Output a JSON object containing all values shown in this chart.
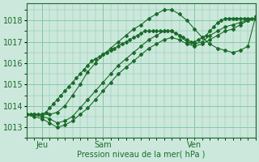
{
  "xlabel": "Pression niveau de la mer( hPa )",
  "bg_color": "#cce8dc",
  "grid_color": "#88c8a8",
  "line_color": "#1a6b2a",
  "xlim": [
    0,
    60
  ],
  "ylim": [
    1012.5,
    1018.8
  ],
  "yticks": [
    1013,
    1014,
    1015,
    1016,
    1017,
    1018
  ],
  "xtick_positions": [
    4,
    20,
    44
  ],
  "xtick_labels": [
    "Jeu",
    "Sam",
    "Ven"
  ],
  "vline_positions": [
    4,
    20,
    44
  ],
  "series": [
    {
      "x": [
        0,
        1,
        2,
        3,
        4,
        5,
        6,
        7,
        8,
        9,
        10,
        11,
        12,
        13,
        14,
        15,
        16,
        17,
        18,
        19,
        20,
        21,
        22,
        23,
        24,
        25,
        26,
        27,
        28,
        29,
        30,
        31,
        32,
        33,
        34,
        35,
        36,
        37,
        38,
        39,
        40,
        41,
        42,
        43,
        44,
        45,
        46,
        47,
        48,
        49,
        50,
        51,
        52,
        53,
        54,
        55,
        56,
        57,
        58,
        59,
        60
      ],
      "y": [
        1013.6,
        1013.6,
        1013.6,
        1013.6,
        1013.6,
        1013.7,
        1013.9,
        1014.1,
        1014.3,
        1014.5,
        1014.7,
        1014.9,
        1015.1,
        1015.3,
        1015.5,
        1015.7,
        1015.9,
        1016.1,
        1016.2,
        1016.3,
        1016.4,
        1016.5,
        1016.6,
        1016.7,
        1016.8,
        1016.9,
        1017.0,
        1017.1,
        1017.2,
        1017.3,
        1017.4,
        1017.5,
        1017.5,
        1017.5,
        1017.5,
        1017.5,
        1017.5,
        1017.5,
        1017.5,
        1017.4,
        1017.3,
        1017.2,
        1017.1,
        1017.0,
        1017.0,
        1017.1,
        1017.2,
        1017.3,
        1017.5,
        1017.7,
        1017.9,
        1018.0,
        1018.1,
        1018.1,
        1018.1,
        1018.1,
        1018.1,
        1018.1,
        1018.1,
        1018.1,
        1018.1
      ]
    },
    {
      "x": [
        0,
        2,
        4,
        6,
        8,
        10,
        12,
        14,
        16,
        18,
        20,
        22,
        24,
        26,
        28,
        30,
        32,
        34,
        36,
        38,
        40,
        42,
        44,
        46,
        48,
        50,
        52,
        54,
        56,
        58,
        60
      ],
      "y": [
        1013.6,
        1013.5,
        1013.4,
        1013.2,
        1013.0,
        1013.1,
        1013.3,
        1013.6,
        1013.9,
        1014.3,
        1014.7,
        1015.1,
        1015.5,
        1015.8,
        1016.1,
        1016.4,
        1016.7,
        1016.9,
        1017.1,
        1017.2,
        1017.1,
        1016.9,
        1016.8,
        1016.9,
        1017.1,
        1017.3,
        1017.5,
        1017.6,
        1017.8,
        1018.0,
        1018.1
      ]
    },
    {
      "x": [
        0,
        2,
        4,
        6,
        8,
        10,
        12,
        14,
        16,
        18,
        20,
        22,
        24,
        26,
        28,
        30,
        32,
        34,
        36,
        38,
        40,
        42,
        44,
        46,
        48,
        50,
        52,
        54,
        56,
        58,
        60
      ],
      "y": [
        1013.6,
        1013.6,
        1013.6,
        1013.6,
        1013.7,
        1014.0,
        1014.5,
        1015.0,
        1015.6,
        1016.0,
        1016.4,
        1016.7,
        1017.0,
        1017.3,
        1017.6,
        1017.8,
        1018.1,
        1018.3,
        1018.5,
        1018.5,
        1018.3,
        1018.0,
        1017.6,
        1017.2,
        1016.9,
        1016.7,
        1016.6,
        1016.5,
        1016.6,
        1016.8,
        1018.2
      ]
    },
    {
      "x": [
        0,
        2,
        4,
        6,
        8,
        10,
        12,
        14,
        16,
        18,
        20,
        22,
        24,
        26,
        28,
        30,
        32,
        34,
        36,
        38,
        40,
        42,
        44,
        46,
        48,
        50,
        52,
        54,
        56,
        58,
        60
      ],
      "y": [
        1013.6,
        1013.6,
        1013.5,
        1013.4,
        1013.2,
        1013.3,
        1013.5,
        1013.9,
        1014.3,
        1014.7,
        1015.1,
        1015.5,
        1015.9,
        1016.2,
        1016.5,
        1016.8,
        1017.1,
        1017.3,
        1017.5,
        1017.5,
        1017.3,
        1017.0,
        1016.9,
        1017.0,
        1017.3,
        1017.5,
        1017.7,
        1017.8,
        1017.9,
        1018.0,
        1018.1
      ]
    }
  ]
}
